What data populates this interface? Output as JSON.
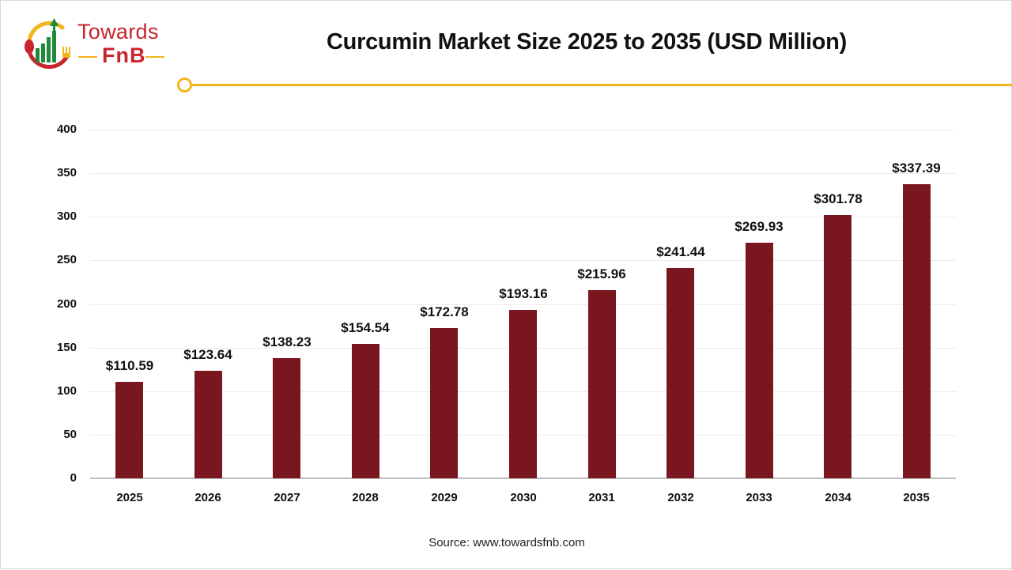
{
  "brand": {
    "line1": "Towards",
    "line2": "FnB",
    "colors": {
      "red": "#c8252c",
      "green": "#1f8a3a",
      "yellow": "#f2b51c"
    }
  },
  "header": {
    "title": "Curcumin Market Size 2025 to 2035 (USD Million)"
  },
  "footer": {
    "source": "Source: www.towardsfnb.com"
  },
  "colors": {
    "bar": "#7a1620",
    "accent": "#f2b51c"
  },
  "chart_data": {
    "type": "bar",
    "title": "Curcumin Market Size 2025 to 2035 (USD Million)",
    "xlabel": "",
    "ylabel": "",
    "ylim": [
      0,
      400
    ],
    "yticks": [
      0,
      50,
      100,
      150,
      200,
      250,
      300,
      350,
      400
    ],
    "grid": true,
    "legend": null,
    "categories": [
      "2025",
      "2026",
      "2027",
      "2028",
      "2029",
      "2030",
      "2031",
      "2032",
      "2033",
      "2034",
      "2035"
    ],
    "values": [
      110.59,
      123.64,
      138.23,
      154.54,
      172.78,
      193.16,
      215.96,
      241.44,
      269.93,
      301.78,
      337.39
    ],
    "data_labels": [
      "$110.59",
      "$123.64",
      "$138.23",
      "$154.54",
      "$172.78",
      "$193.16",
      "$215.96",
      "$241.44",
      "$269.93",
      "$301.78",
      "$337.39"
    ]
  }
}
